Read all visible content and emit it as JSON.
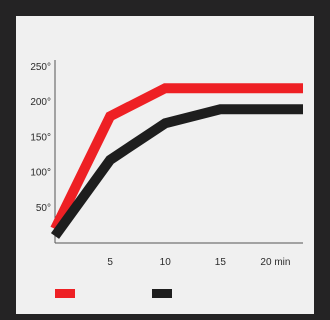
{
  "colors": {
    "page_background": "#242324",
    "panel_background": "#f0f0f0",
    "axis": "#555555"
  },
  "chart_data": {
    "type": "line",
    "title": "",
    "xlabel": "",
    "ylabel": "",
    "xlim": [
      0,
      22.5
    ],
    "ylim": [
      0,
      260
    ],
    "y_ticks": [
      {
        "value": 50,
        "label": "50°"
      },
      {
        "value": 100,
        "label": "100°"
      },
      {
        "value": 150,
        "label": "150°"
      },
      {
        "value": 200,
        "label": "200°"
      },
      {
        "value": 250,
        "label": "250°"
      }
    ],
    "x_ticks": [
      {
        "value": 5,
        "label": "5"
      },
      {
        "value": 10,
        "label": "10"
      },
      {
        "value": 15,
        "label": "15"
      },
      {
        "value": 20,
        "label": "20 min"
      }
    ],
    "grid": false,
    "legend_position": "bottom-left",
    "series": [
      {
        "color": "#ee2024",
        "x": [
          0,
          5,
          10,
          15,
          20,
          22.5
        ],
        "y": [
          20,
          180,
          220,
          220,
          220,
          220
        ]
      },
      {
        "color": "#1e1e1e",
        "x": [
          0,
          5,
          10,
          15,
          20,
          22.5
        ],
        "y": [
          10,
          118,
          170,
          190,
          190,
          190
        ]
      }
    ]
  }
}
